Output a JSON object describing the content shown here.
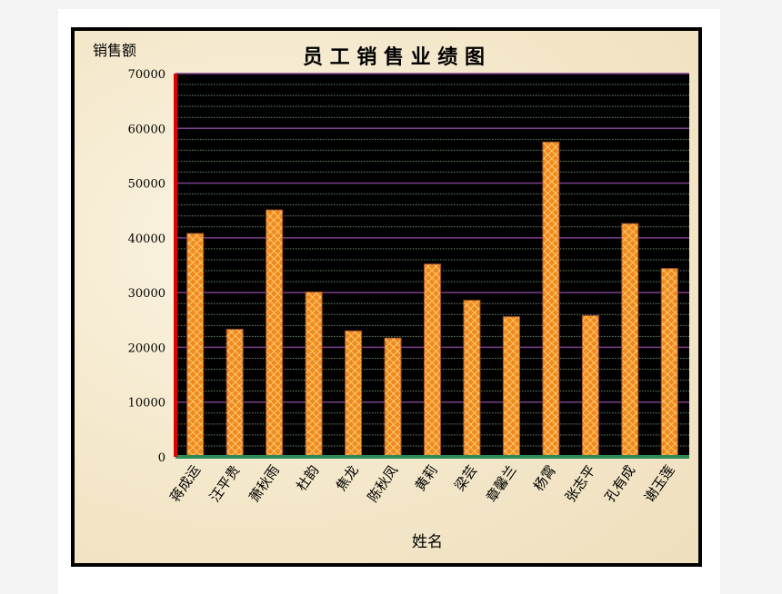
{
  "chart_data": {
    "type": "bar",
    "title": "员 工 销 售 业 绩 图",
    "xlabel": "姓名",
    "ylabel": "销售额",
    "categories": [
      "蒋成运",
      "汪平贵",
      "萧秋雨",
      "杜韵",
      "焦龙",
      "陈秋凤",
      "黄莉",
      "梁芸",
      "章馨兰",
      "杨霄",
      "张志平",
      "孔有成",
      "谢玉莲"
    ],
    "values": [
      40800,
      23300,
      45100,
      30100,
      23000,
      21700,
      35200,
      28600,
      25600,
      57500,
      25800,
      42600,
      34400
    ],
    "ylim": [
      0,
      70000
    ],
    "yticks": [
      0,
      10000,
      20000,
      30000,
      40000,
      50000,
      60000,
      70000
    ],
    "major_grid_step": 10000,
    "minor_grid_step": 2000,
    "grid": true,
    "legend": "none",
    "colors": {
      "bar": "#f08a1c",
      "bar_pattern": "#ffd88a",
      "bar_border": "#a0522d",
      "plot_bg": "#000000",
      "major_grid": "#7b3f8c",
      "minor_grid": "#6a8a6a",
      "y_axis": "#e00000",
      "x_axis": "#2e8b57"
    }
  }
}
